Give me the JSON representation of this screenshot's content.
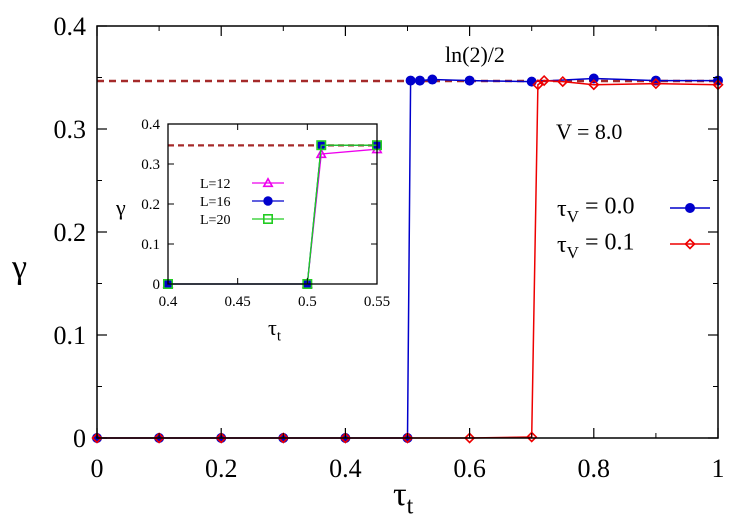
{
  "chart_data": [
    {
      "type": "line",
      "xlabel": "τ",
      "xlabel_sub": "t",
      "ylabel": "γ",
      "xlim": [
        0,
        1
      ],
      "ylim": [
        0,
        0.4
      ],
      "xticks": [
        "0",
        "0.2",
        "0.4",
        "0.6",
        "0.8",
        "1"
      ],
      "xtick_values": [
        0,
        0.2,
        0.4,
        0.6,
        0.8,
        1
      ],
      "yticks": [
        "0",
        "0.1",
        "0.2",
        "0.3",
        "0.4"
      ],
      "ytick_values": [
        0,
        0.1,
        0.2,
        0.3,
        0.4
      ],
      "reference_line": {
        "label": "ln(2)/2",
        "y": 0.3466,
        "color": "#a52a2a",
        "style": "dashed"
      },
      "annotation": "V = 8.0",
      "legend_position": "right",
      "series": [
        {
          "name_main": "τ",
          "name_sub": "V",
          "name_rest": " = 0.0",
          "color": "#0000cc",
          "marker": "filled-circle",
          "x": [
            0,
            0.1,
            0.2,
            0.3,
            0.4,
            0.5,
            0.505,
            0.52,
            0.54,
            0.6,
            0.7,
            0.8,
            0.9,
            1.0
          ],
          "y": [
            0,
            0,
            0,
            0,
            0,
            0,
            0.347,
            0.347,
            0.348,
            0.347,
            0.346,
            0.349,
            0.347,
            0.347
          ]
        },
        {
          "name_main": "τ",
          "name_sub": "V",
          "name_rest": " = 0.1",
          "color": "#ee0000",
          "marker": "open-diamond",
          "x": [
            0,
            0.1,
            0.2,
            0.3,
            0.4,
            0.5,
            0.6,
            0.7,
            0.71,
            0.72,
            0.75,
            0.8,
            0.9,
            1.0
          ],
          "y": [
            0,
            0,
            0,
            0,
            0,
            0,
            0,
            0.001,
            0.343,
            0.347,
            0.346,
            0.343,
            0.344,
            0.343
          ]
        }
      ]
    },
    {
      "type": "line",
      "inset": true,
      "xlabel": "τ",
      "xlabel_sub": "t",
      "ylabel": "γ",
      "xlim": [
        0.4,
        0.55
      ],
      "ylim": [
        0,
        0.4
      ],
      "xticks": [
        "0.4",
        "0.45",
        "0.5",
        "0.55"
      ],
      "xtick_values": [
        0.4,
        0.45,
        0.5,
        0.55
      ],
      "yticks": [
        "0",
        "0.1",
        "0.2",
        "0.3",
        "0.4"
      ],
      "ytick_values": [
        0,
        0.1,
        0.2,
        0.3,
        0.4
      ],
      "reference_line": {
        "y": 0.3466,
        "color": "#a52a2a",
        "style": "dashed"
      },
      "legend_position": "left",
      "series": [
        {
          "name": "L=12",
          "color": "#ee00ee",
          "marker": "open-triangle",
          "x": [
            0.4,
            0.5,
            0.51,
            0.55
          ],
          "y": [
            0,
            0,
            0.325,
            0.337
          ]
        },
        {
          "name": "L=16",
          "color": "#0000cc",
          "marker": "filled-circle",
          "x": [
            0.4,
            0.5,
            0.51,
            0.55
          ],
          "y": [
            0,
            0,
            0.347,
            0.347
          ]
        },
        {
          "name": "L=20",
          "color": "#22cc22",
          "marker": "open-square",
          "x": [
            0.4,
            0.5,
            0.51,
            0.55
          ],
          "y": [
            0,
            0,
            0.347,
            0.347
          ]
        }
      ]
    }
  ]
}
